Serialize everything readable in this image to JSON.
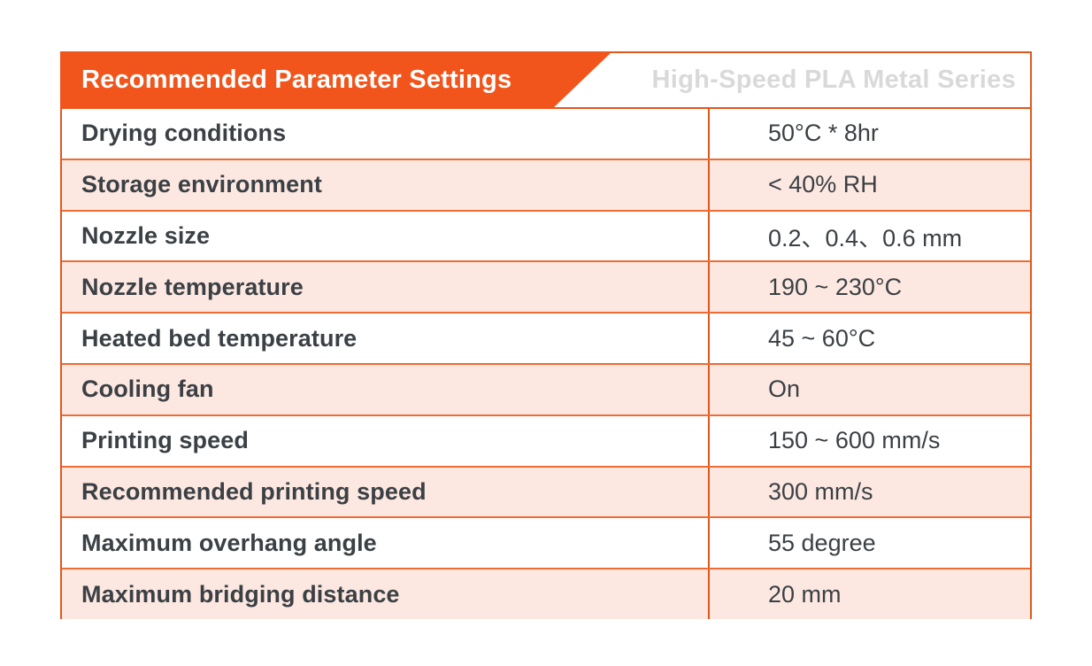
{
  "header": {
    "title": "Recommended Parameter Settings",
    "series": "High-Speed PLA Metal Series"
  },
  "colors": {
    "accent_orange": "#f1551b",
    "border_orange": "#e4571c",
    "inner_border_orange": "#ee6b33",
    "row_alt_background": "#fce8e1",
    "text": "#3b4045",
    "series_text": "#d9d9d9"
  },
  "table": {
    "rows": [
      {
        "label": "Drying conditions",
        "value": "50°C * 8hr"
      },
      {
        "label": "Storage environment",
        "value": "< 40% RH"
      },
      {
        "label": "Nozzle size",
        "value": "0.2、0.4、0.6 mm"
      },
      {
        "label": "Nozzle temperature",
        "value": "190 ~ 230°C"
      },
      {
        "label": "Heated bed temperature",
        "value": "45 ~ 60°C"
      },
      {
        "label": "Cooling fan",
        "value": "On"
      },
      {
        "label": "Printing speed",
        "value": "150 ~ 600 mm/s"
      },
      {
        "label": "Recommended printing speed",
        "value": "300 mm/s"
      },
      {
        "label": "Maximum overhang angle",
        "value": "55 degree"
      },
      {
        "label": "Maximum bridging distance",
        "value": "20 mm"
      }
    ]
  }
}
